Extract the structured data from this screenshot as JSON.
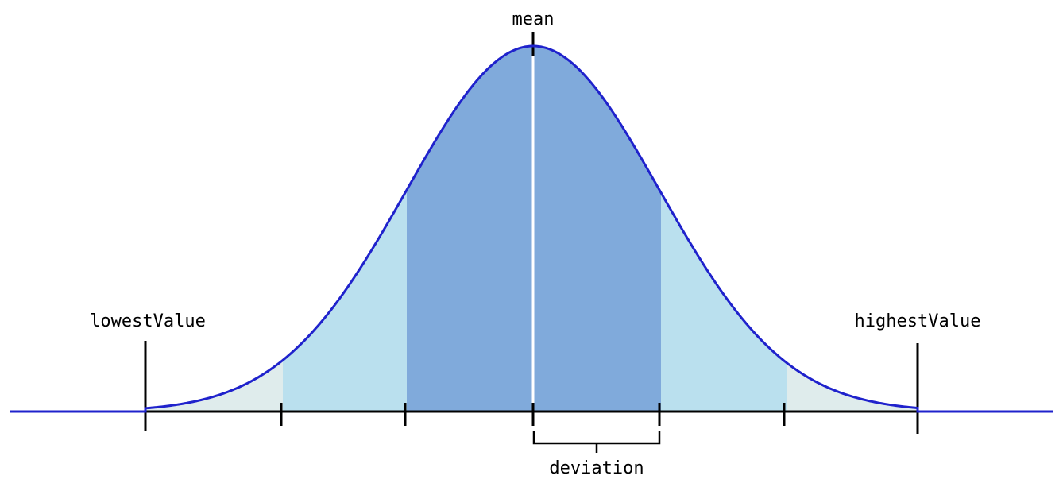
{
  "labels": {
    "mean": "mean",
    "lowest": "lowestValue",
    "highest": "highestValue",
    "deviation": "deviation"
  },
  "colors": {
    "curve": "#1f22cc",
    "band_1sd": "#80aadb",
    "band_2sd": "#bae0ee",
    "band_3sd": "#dfecec",
    "axis": "#000000",
    "mean_line": "#ffffff"
  },
  "distribution": {
    "shape": "normal",
    "bands": [
      "within 1 deviation",
      "within 2 deviations",
      "within 3 deviations"
    ]
  }
}
